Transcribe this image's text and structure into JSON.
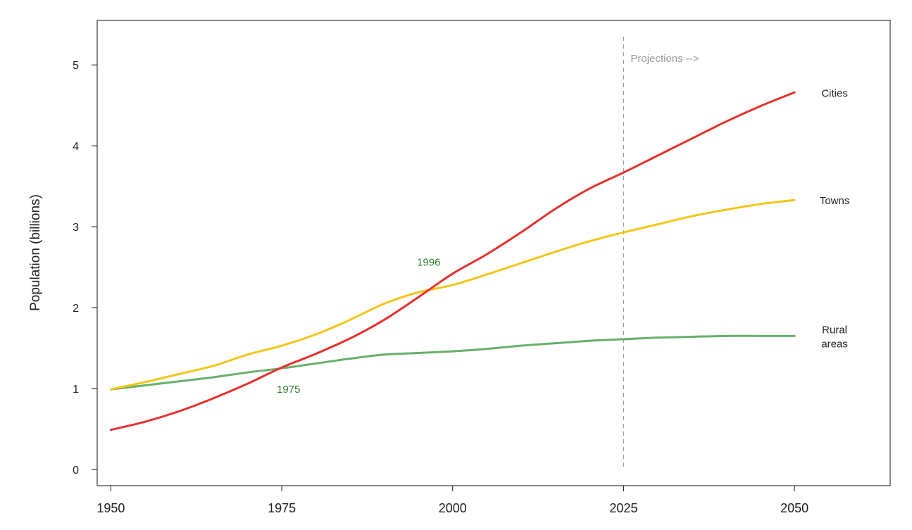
{
  "chart_data": {
    "type": "line",
    "title": "",
    "xlabel": "",
    "ylabel": "Population (billions)",
    "xlim": [
      1948,
      2064
    ],
    "ylim": [
      -0.2,
      5.55
    ],
    "xticks": [
      1950,
      1975,
      2000,
      2025,
      2050
    ],
    "yticks": [
      0,
      1,
      2,
      3,
      4,
      5
    ],
    "grid": false,
    "legend": "none",
    "projection": {
      "x": 2025,
      "label": "Projections -->"
    },
    "x": [
      1950,
      1955,
      1960,
      1965,
      1970,
      1975,
      1980,
      1985,
      1990,
      1995,
      2000,
      2005,
      2010,
      2015,
      2020,
      2025,
      2030,
      2035,
      2040,
      2045,
      2050
    ],
    "series": [
      {
        "name": "Cities",
        "color": "#e8302d",
        "values": [
          0.49,
          0.59,
          0.72,
          0.88,
          1.06,
          1.26,
          1.43,
          1.62,
          1.85,
          2.13,
          2.42,
          2.66,
          2.93,
          3.22,
          3.47,
          3.67,
          3.88,
          4.09,
          4.3,
          4.49,
          4.66
        ]
      },
      {
        "name": "Towns",
        "color": "#f5c518",
        "values": [
          0.99,
          1.08,
          1.18,
          1.28,
          1.42,
          1.53,
          1.67,
          1.85,
          2.05,
          2.19,
          2.28,
          2.41,
          2.55,
          2.69,
          2.82,
          2.93,
          3.03,
          3.13,
          3.21,
          3.28,
          3.33
        ]
      },
      {
        "name": "Rural\nareas",
        "color": "#66b06a",
        "values": [
          0.99,
          1.04,
          1.09,
          1.14,
          1.2,
          1.25,
          1.31,
          1.37,
          1.42,
          1.44,
          1.46,
          1.49,
          1.53,
          1.56,
          1.59,
          1.61,
          1.63,
          1.64,
          1.65,
          1.65,
          1.65
        ]
      }
    ],
    "annotations": [
      {
        "text": "1975",
        "x": 1976,
        "y": 0.95,
        "color": "#2e7d32"
      },
      {
        "text": "1996",
        "x": 1996.5,
        "y": 2.52,
        "color": "#2e7d32"
      }
    ]
  }
}
